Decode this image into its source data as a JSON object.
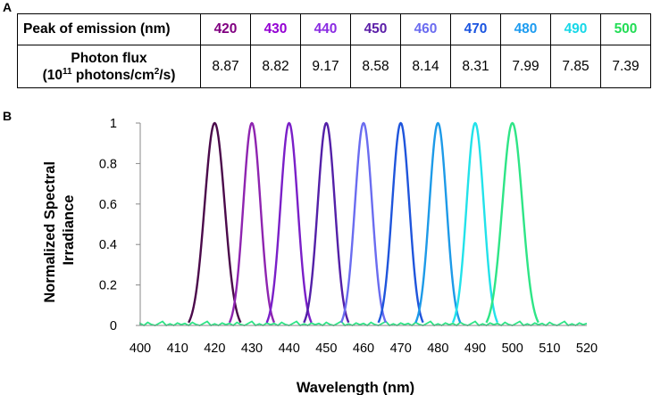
{
  "panel_labels": {
    "a": "A",
    "b": "B"
  },
  "table": {
    "row1_header": "Peak of emission (nm)",
    "row2_header_line1": "Photon flux",
    "row2_header_line2_prefix": "(10",
    "row2_header_line2_sup1": "11",
    "row2_header_line2_mid": " photons/cm",
    "row2_header_line2_sup2": "2",
    "row2_header_line2_suffix": "/s)",
    "peaks": [
      "420",
      "430",
      "440",
      "450",
      "460",
      "470",
      "480",
      "490",
      "500"
    ],
    "peak_colors": [
      "#800080",
      "#9400d3",
      "#8a2be2",
      "#5b1ea8",
      "#6b6cf0",
      "#1a54e0",
      "#1e9cf0",
      "#18d8e8",
      "#22dd55"
    ],
    "flux": [
      "8.87",
      "8.82",
      "9.17",
      "8.58",
      "8.14",
      "8.31",
      "7.99",
      "7.85",
      "7.39"
    ]
  },
  "chart_data": {
    "type": "line",
    "title": "",
    "xlabel": "Wavelength (nm)",
    "ylabel_line1": "Normalized Spectral",
    "ylabel_line2": "Irradiance",
    "xlim": [
      400,
      520
    ],
    "ylim": [
      0,
      1
    ],
    "xticks": [
      "400",
      "410",
      "420",
      "430",
      "440",
      "450",
      "460",
      "470",
      "480",
      "490",
      "500",
      "510",
      "520"
    ],
    "yticks": [
      "0",
      "0.2",
      "0.4",
      "0.6",
      "0.8",
      "1"
    ],
    "series": [
      {
        "name": "420",
        "color": "#4b0a4b",
        "peak": 420,
        "left_zero": 413,
        "right_zero": 427
      },
      {
        "name": "430",
        "color": "#8e24b0",
        "peak": 430,
        "left_zero": 424,
        "right_zero": 436
      },
      {
        "name": "440",
        "color": "#7a1fc8",
        "peak": 440,
        "left_zero": 434,
        "right_zero": 446
      },
      {
        "name": "450",
        "color": "#5320a8",
        "peak": 450,
        "left_zero": 444,
        "right_zero": 456
      },
      {
        "name": "460",
        "color": "#6a6cf0",
        "peak": 460,
        "left_zero": 454,
        "right_zero": 466
      },
      {
        "name": "470",
        "color": "#1f55dc",
        "peak": 470,
        "left_zero": 464,
        "right_zero": 476
      },
      {
        "name": "480",
        "color": "#1d9ae8",
        "peak": 480,
        "left_zero": 474,
        "right_zero": 486
      },
      {
        "name": "490",
        "color": "#22e2ea",
        "peak": 490,
        "left_zero": 484,
        "right_zero": 496
      },
      {
        "name": "500",
        "color": "#2ee586",
        "peak": 500,
        "left_zero": 493,
        "right_zero": 507
      }
    ]
  }
}
